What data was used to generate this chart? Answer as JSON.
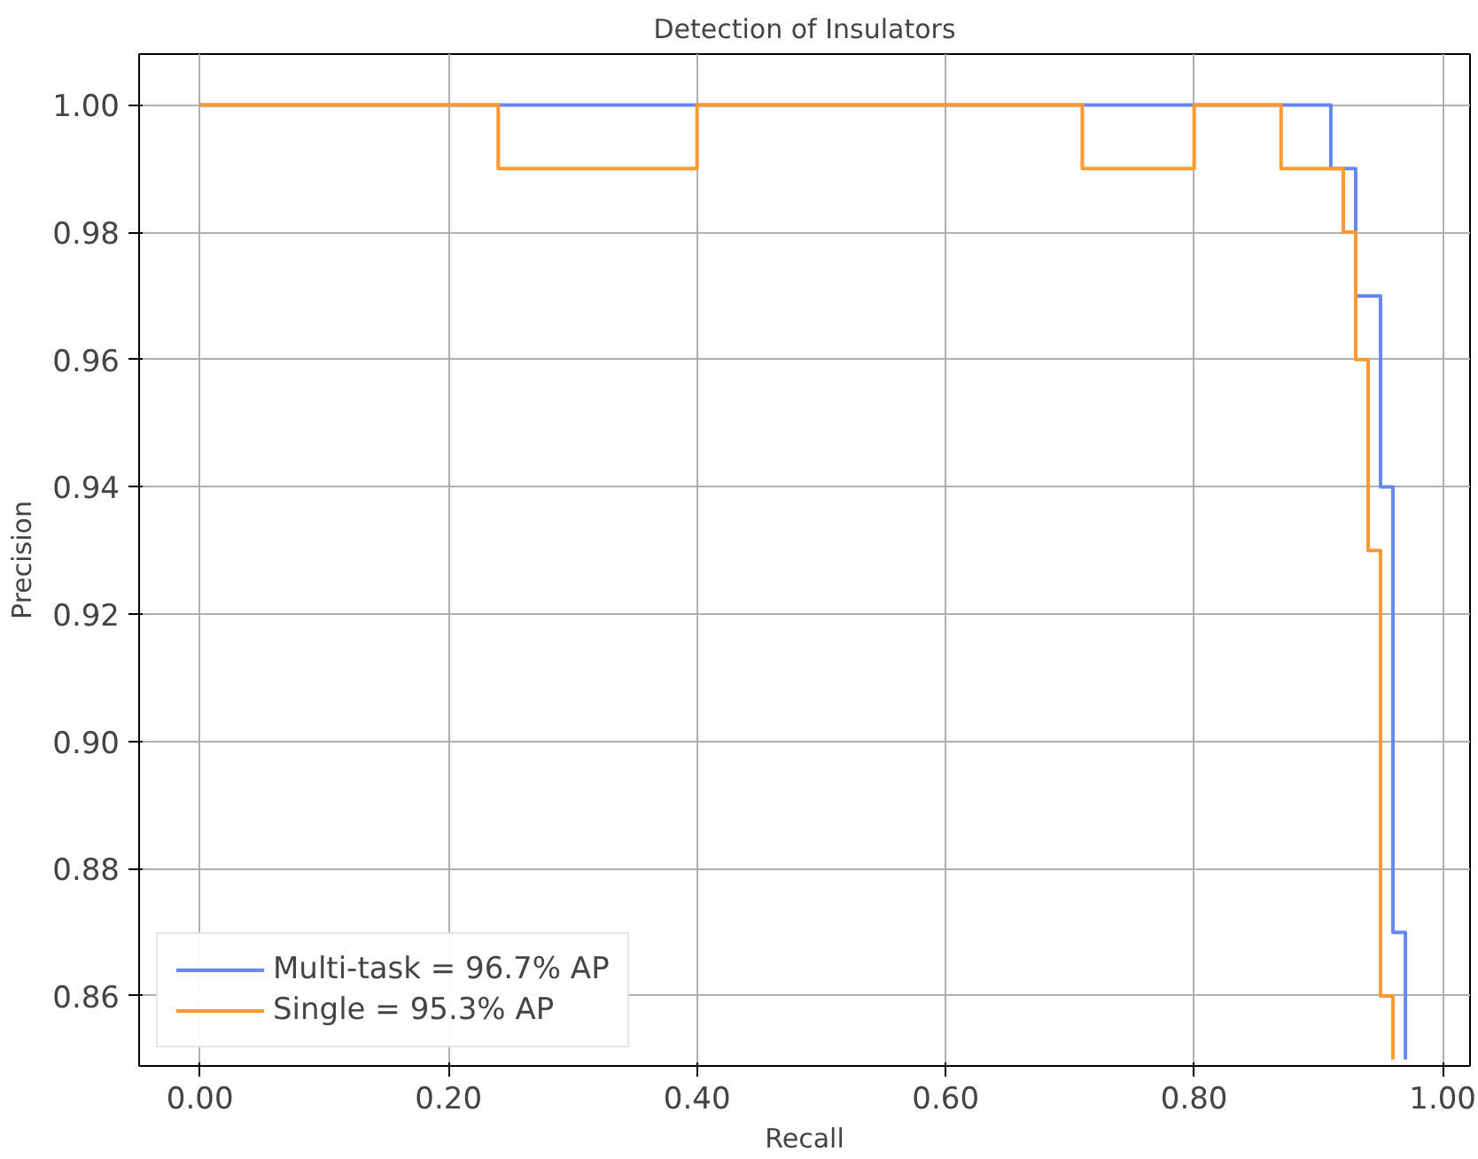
{
  "chart_data": {
    "type": "step",
    "title": "Detection of Insulators",
    "xlabel": "Recall",
    "ylabel": "Precision",
    "xlim": [
      -0.049,
      1.022
    ],
    "ylim": [
      0.849,
      1.008
    ],
    "xticks": [
      {
        "value": 0,
        "label": "0.00"
      },
      {
        "value": 0.2,
        "label": "0.20"
      },
      {
        "value": 0.4,
        "label": "0.40"
      },
      {
        "value": 0.6,
        "label": "0.60"
      },
      {
        "value": 0.8,
        "label": "0.80"
      },
      {
        "value": 1,
        "label": "1.00"
      }
    ],
    "yticks": [
      {
        "value": 0.86,
        "label": "0.86"
      },
      {
        "value": 0.88,
        "label": "0.88"
      },
      {
        "value": 0.9,
        "label": "0.90"
      },
      {
        "value": 0.92,
        "label": "0.92"
      },
      {
        "value": 0.94,
        "label": "0.94"
      },
      {
        "value": 0.96,
        "label": "0.96"
      },
      {
        "value": 0.98,
        "label": "0.98"
      },
      {
        "value": 1,
        "label": "1.00"
      }
    ],
    "grid": true,
    "legend": "bottom left",
    "line_style": "solid",
    "series": [
      {
        "name": "Multi-task = 96.7% AP",
        "color": "#6688ee",
        "x": [
          0,
          0.91,
          0.93,
          0.95,
          0.96,
          0.97
        ],
        "values": [
          1.0,
          0.99,
          0.97,
          0.94,
          0.87,
          0.85
        ]
      },
      {
        "name": "Single = 95.3% AP",
        "color": "#ff9933",
        "x": [
          0,
          0.24,
          0.4,
          0.71,
          0.8,
          0.87,
          0.92,
          0.93,
          0.94,
          0.95,
          0.96
        ],
        "values": [
          1.0,
          0.99,
          1.0,
          0.99,
          1.0,
          0.99,
          0.98,
          0.96,
          0.93,
          0.86,
          0.85
        ]
      }
    ]
  }
}
